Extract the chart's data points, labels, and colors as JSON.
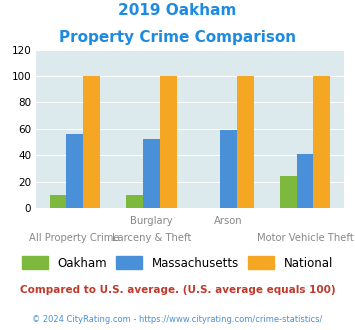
{
  "title_line1": "2019 Oakham",
  "title_line2": "Property Crime Comparison",
  "oakham": [
    10,
    10,
    0,
    24
  ],
  "massachusetts": [
    56,
    52,
    59,
    41
  ],
  "national": [
    100,
    100,
    100,
    100
  ],
  "color_oakham": "#7db93d",
  "color_mass": "#4a90d9",
  "color_national": "#f5a623",
  "bg_color": "#dce9ed",
  "ylim": [
    0,
    120
  ],
  "yticks": [
    0,
    20,
    40,
    60,
    80,
    100,
    120
  ],
  "cat_top": [
    "",
    "Burglary",
    "Arson",
    ""
  ],
  "cat_bottom": [
    "All Property Crime",
    "Larceny & Theft",
    "",
    "Motor Vehicle Theft"
  ],
  "title_color": "#1e8be0",
  "footnote1": "Compared to U.S. average. (U.S. average equals 100)",
  "footnote2": "© 2024 CityRating.com - https://www.cityrating.com/crime-statistics/",
  "footnote1_color": "#c0392b",
  "footnote2_color": "#4a90d9",
  "legend_labels": [
    "Oakham",
    "Massachusetts",
    "National"
  ]
}
